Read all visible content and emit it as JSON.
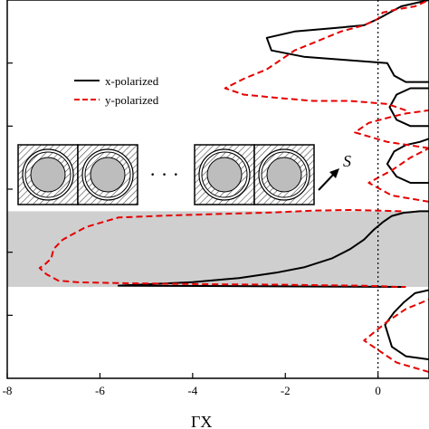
{
  "chart_data": {
    "type": "line",
    "xlabel": "ΓX",
    "ylabel": "",
    "xlim": [
      -8,
      1.1
    ],
    "ylim": [
      0,
      1.2
    ],
    "x_ticks": [
      -8,
      -6,
      -4,
      -2,
      0
    ],
    "y_ticks": [
      0.2,
      0.4,
      0.6,
      0.8,
      1.0
    ],
    "grid": false,
    "legend_position": "top-left",
    "band_gap": [
      0.29,
      0.53
    ],
    "reference_line_x": 0,
    "annotation_s": "S",
    "ellipsis": "· · ·",
    "cells_left": 2,
    "cells_right": 2,
    "series": [
      {
        "name": "x-polarized",
        "color": "#000000",
        "dash": "solid",
        "branches": [
          {
            "x": [
              0.55,
              -5.6,
              -4.0,
              -3.0,
              -2.2,
              -1.6,
              -1.0,
              -0.6,
              -0.3,
              -0.1,
              0.1,
              0.3,
              0.55,
              0.9,
              1.1
            ],
            "y": [
              0.29,
              0.294,
              0.305,
              0.318,
              0.335,
              0.352,
              0.38,
              0.41,
              0.44,
              0.47,
              0.495,
              0.515,
              0.525,
              0.53,
              0.53
            ]
          },
          {
            "x": [
              1.1,
              0.6,
              0.3,
              0.15,
              0.35,
              0.55,
              0.8,
              1.1
            ],
            "y": [
              0.06,
              0.07,
              0.1,
              0.17,
              0.21,
              0.24,
              0.27,
              0.28
            ]
          },
          {
            "x": [
              1.1,
              0.7,
              0.4,
              0.2,
              0.35,
              0.6,
              0.9,
              1.1
            ],
            "y": [
              0.62,
              0.62,
              0.64,
              0.68,
              0.72,
              0.74,
              0.75,
              0.76
            ]
          },
          {
            "x": [
              1.1,
              0.7,
              0.4,
              0.25,
              0.4,
              0.7,
              1.1
            ],
            "y": [
              0.8,
              0.8,
              0.82,
              0.86,
              0.9,
              0.92,
              0.92
            ]
          },
          {
            "x": [
              1.1,
              0.6,
              0.35,
              0.2,
              -0.7,
              -1.6,
              -2.3,
              -2.4,
              -1.8,
              -1.0,
              -0.3,
              0.0,
              0.25,
              0.5,
              0.8,
              1.1
            ],
            "y": [
              0.94,
              0.94,
              0.96,
              1.0,
              1.01,
              1.02,
              1.04,
              1.08,
              1.1,
              1.11,
              1.12,
              1.14,
              1.16,
              1.18,
              1.19,
              1.2
            ]
          }
        ]
      },
      {
        "name": "y-polarized",
        "color": "#e60000",
        "dash": "dashed",
        "branches": [
          {
            "x": [
              0.5,
              0.0,
              -0.6,
              -1.4,
              -2.3,
              -3.5,
              -4.6,
              -5.6,
              -6.3,
              -6.8,
              -7.0,
              -7.05,
              -7.2,
              -7.3,
              -7.15,
              -6.9,
              -6.5,
              -5.6,
              -4.6,
              -3.4,
              -2.2,
              -1.2,
              -0.4,
              0.1,
              0.4,
              0.6
            ],
            "y": [
              0.53,
              0.532,
              0.534,
              0.532,
              0.526,
              0.521,
              0.516,
              0.51,
              0.48,
              0.44,
              0.41,
              0.38,
              0.36,
              0.35,
              0.33,
              0.31,
              0.305,
              0.302,
              0.3,
              0.298,
              0.297,
              0.295,
              0.294,
              0.292,
              0.29,
              0.29
            ]
          },
          {
            "x": [
              1.1,
              0.4,
              -0.3,
              0.2,
              0.6,
              1.1
            ],
            "y": [
              0.02,
              0.05,
              0.12,
              0.18,
              0.22,
              0.25
            ]
          },
          {
            "x": [
              1.1,
              0.3,
              -0.2,
              0.3,
              0.7,
              1.1
            ],
            "y": [
              0.56,
              0.58,
              0.62,
              0.66,
              0.7,
              0.73
            ]
          },
          {
            "x": [
              1.1,
              0.2,
              -0.5,
              -0.2,
              0.3,
              0.6,
              1.1
            ],
            "y": [
              0.73,
              0.75,
              0.78,
              0.81,
              0.83,
              0.84,
              0.85
            ]
          },
          {
            "x": [
              0.6,
              0.2,
              -0.6,
              -1.4,
              -2.2,
              -2.9,
              -3.3,
              -2.9,
              -2.4,
              -2.1,
              -1.8,
              -1.3,
              -0.8,
              -0.3,
              0.0,
              0.1,
              0.4,
              0.8,
              1.1
            ],
            "y": [
              0.85,
              0.87,
              0.88,
              0.88,
              0.89,
              0.9,
              0.92,
              0.95,
              0.98,
              1.01,
              1.04,
              1.07,
              1.1,
              1.12,
              1.14,
              1.16,
              1.17,
              1.18,
              1.2
            ]
          }
        ]
      }
    ]
  }
}
